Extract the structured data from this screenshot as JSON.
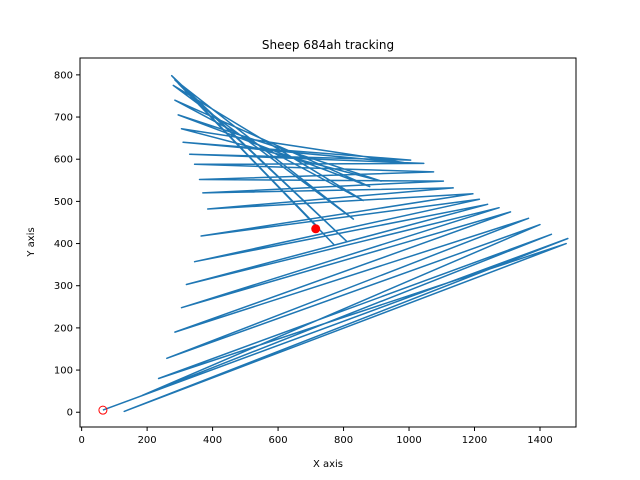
{
  "chart_data": {
    "type": "line",
    "title": "Sheep 684ah tracking",
    "xlabel": "X axis",
    "ylabel": "Y axis",
    "xlim": [
      -5,
      1510
    ],
    "ylim": [
      -35,
      840
    ],
    "xticks": [
      0,
      200,
      400,
      600,
      800,
      1000,
      1200,
      1400
    ],
    "yticks": [
      0,
      100,
      200,
      300,
      400,
      500,
      600,
      700,
      800
    ],
    "grid": false,
    "line_color": "#1f77b4",
    "marker_color": "#ff0000",
    "start_point": {
      "x": 65,
      "y": 5,
      "marker": "hollow-circle"
    },
    "end_point": {
      "x": 715,
      "y": 435,
      "marker": "filled-circle"
    },
    "path": [
      [
        65,
        5
      ],
      [
        1485,
        412
      ],
      [
        130,
        2
      ],
      [
        1480,
        400
      ],
      [
        235,
        80
      ],
      [
        1435,
        422
      ],
      [
        185,
        40
      ],
      [
        1400,
        445
      ],
      [
        260,
        128
      ],
      [
        1365,
        460
      ],
      [
        285,
        190
      ],
      [
        1310,
        475
      ],
      [
        305,
        248
      ],
      [
        1275,
        485
      ],
      [
        320,
        303
      ],
      [
        1240,
        493
      ],
      [
        345,
        357
      ],
      [
        1215,
        505
      ],
      [
        365,
        418
      ],
      [
        1195,
        518
      ],
      [
        385,
        482
      ],
      [
        1135,
        532
      ],
      [
        370,
        520
      ],
      [
        1105,
        548
      ],
      [
        360,
        552
      ],
      [
        1075,
        570
      ],
      [
        345,
        588
      ],
      [
        1045,
        590
      ],
      [
        330,
        612
      ],
      [
        1005,
        598
      ],
      [
        310,
        640
      ],
      [
        985,
        592
      ],
      [
        305,
        672
      ],
      [
        915,
        548
      ],
      [
        295,
        705
      ],
      [
        880,
        535
      ],
      [
        285,
        740
      ],
      [
        860,
        502
      ],
      [
        280,
        775
      ],
      [
        830,
        458
      ],
      [
        285,
        788
      ],
      [
        810,
        405
      ],
      [
        275,
        798
      ],
      [
        770,
        398
      ],
      [
        295,
        780
      ],
      [
        720,
        440
      ],
      [
        715,
        435
      ]
    ]
  }
}
